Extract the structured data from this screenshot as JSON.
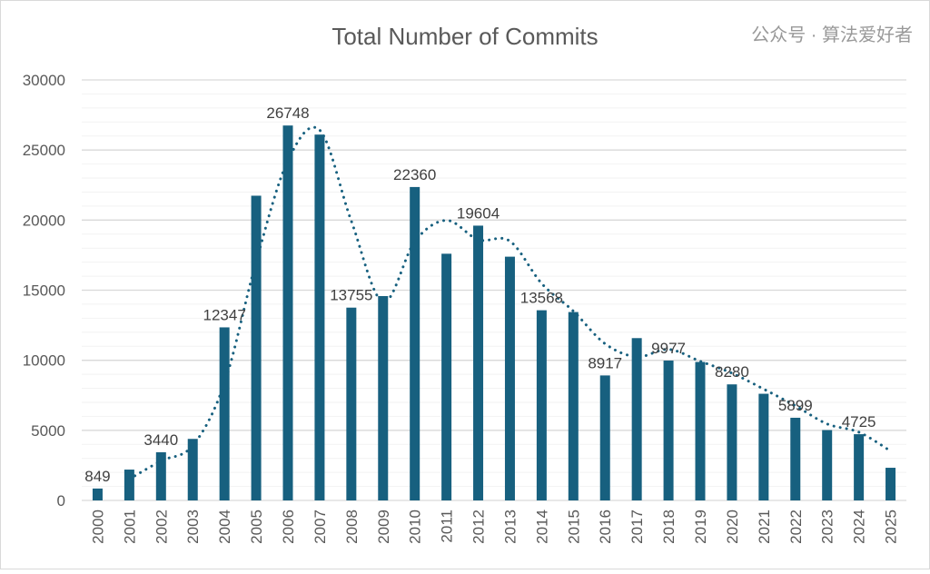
{
  "chart_data": {
    "type": "bar",
    "title": "Total Number of Commits",
    "xlabel": "",
    "ylabel": "",
    "ylim": [
      0,
      30000
    ],
    "yticks": [
      0,
      5000,
      10000,
      15000,
      20000,
      25000,
      30000
    ],
    "grid": true,
    "legend": "none",
    "categories": [
      "2000",
      "2001",
      "2002",
      "2003",
      "2004",
      "2005",
      "2006",
      "2007",
      "2008",
      "2009",
      "2010",
      "2011",
      "2012",
      "2013",
      "2014",
      "2015",
      "2016",
      "2017",
      "2018",
      "2019",
      "2020",
      "2021",
      "2022",
      "2023",
      "2024",
      "2025"
    ],
    "values": [
      849,
      2200,
      3440,
      4390,
      12347,
      21740,
      26748,
      26100,
      13755,
      14580,
      22360,
      17600,
      19604,
      17390,
      13568,
      13440,
      8917,
      11580,
      9977,
      9880,
      8280,
      7610,
      5899,
      5020,
      4725,
      2330
    ],
    "data_labels": {
      "2000": "849",
      "2002": "3440",
      "2004": "12347",
      "2006": "26748",
      "2008": "13755",
      "2010": "22360",
      "2012": "19604",
      "2014": "13568",
      "2016": "8917",
      "2018": "9977",
      "2020": "8280",
      "2022": "5899",
      "2024": "4725"
    },
    "trendline": {
      "type": "moving-average",
      "period": 2,
      "style": "dotted"
    },
    "colors": {
      "bar": "#17607F",
      "trendline": "#17607F",
      "text": "#595959",
      "grid": "#D9D9D9"
    }
  },
  "watermark": "公众号 · 算法爱好者"
}
